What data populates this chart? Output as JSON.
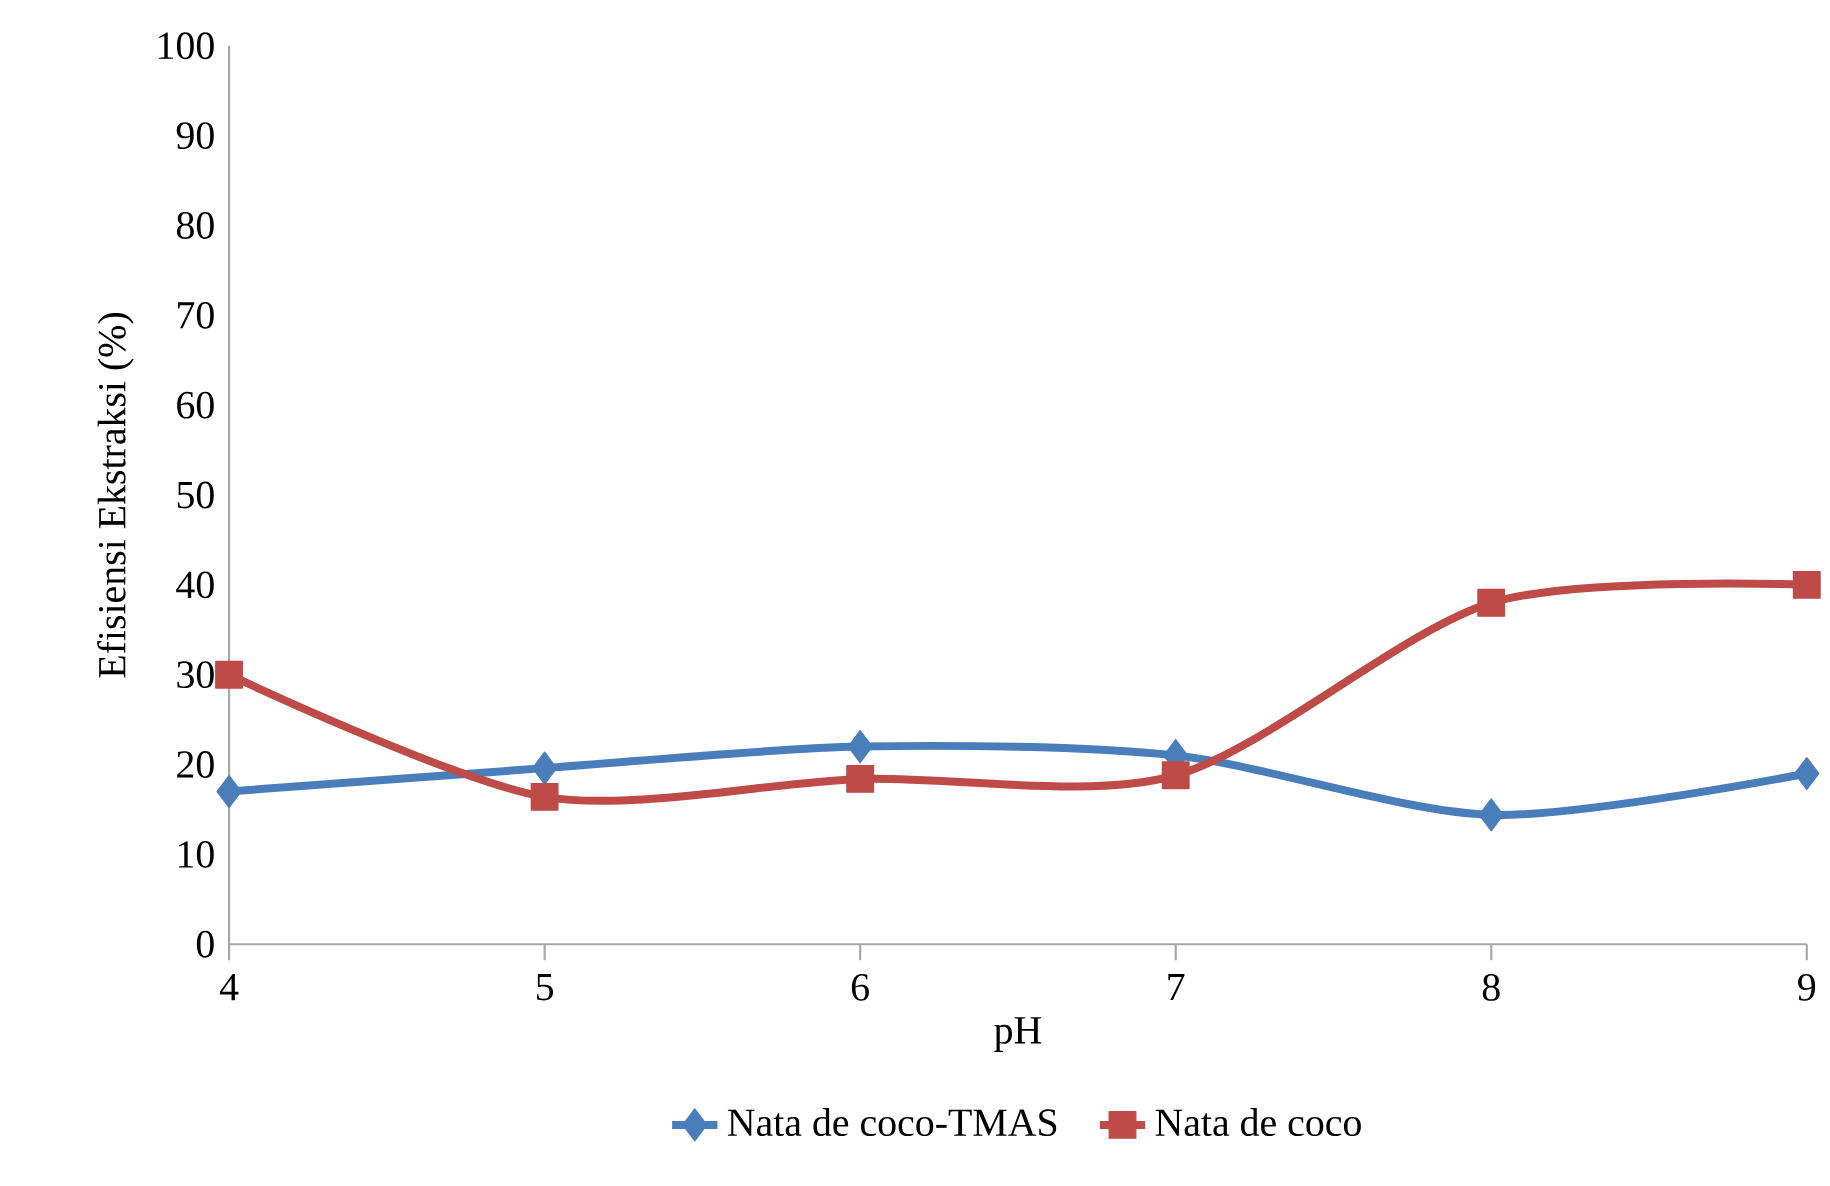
{
  "chart_data": {
    "type": "line",
    "xlabel": "pH",
    "ylabel": "Efisiensi Ekstraksi (%)",
    "x": [
      4,
      5,
      6,
      7,
      8,
      9
    ],
    "series": [
      {
        "name": "Nata de coco-TMAS",
        "color": "#4a7ebb",
        "marker": "diamond",
        "values": [
          17,
          19.6,
          22,
          21,
          14.4,
          19
        ]
      },
      {
        "name": "Nata de coco",
        "color": "#be4b48",
        "marker": "square",
        "values": [
          30,
          16.4,
          18.4,
          18.8,
          38,
          40
        ]
      }
    ],
    "xlim": [
      4,
      9
    ],
    "xticks": [
      4,
      5,
      6,
      7,
      8,
      9
    ],
    "ylim": [
      0,
      100
    ],
    "yticks": [
      0,
      10,
      20,
      30,
      40,
      50,
      60,
      70,
      80,
      90,
      100
    ],
    "grid": false,
    "legend": "bottom"
  }
}
